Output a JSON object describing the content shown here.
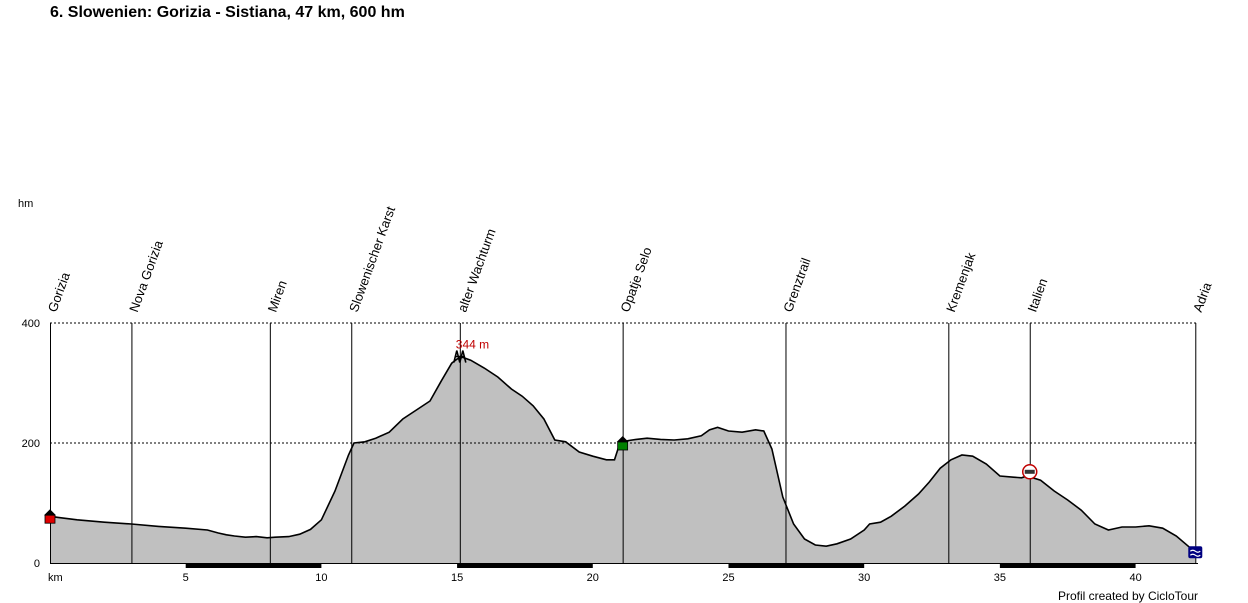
{
  "chart_data": {
    "type": "area",
    "title": "6. Slowenien: Gorizia - Sistiana, 47 km, 600 hm",
    "xlabel": "km",
    "ylabel": "hm",
    "xlim": [
      0,
      42.3
    ],
    "ylim": [
      0,
      400
    ],
    "x_ticks": [
      5,
      10,
      15,
      20,
      25,
      30,
      35,
      40
    ],
    "y_ticks": [
      0,
      200,
      400
    ],
    "grid": "dashed horizontal at 200 and 400",
    "fill_color": "#c0c0c0",
    "line_color": "#000000",
    "profile": {
      "x": [
        0,
        0.3,
        1,
        2,
        3,
        4,
        5,
        5.8,
        6.2,
        6.5,
        6.8,
        7.2,
        7.6,
        8,
        8.3,
        8.8,
        9.2,
        9.6,
        10,
        10.5,
        11,
        11.2,
        11.6,
        12,
        12.5,
        13,
        13.5,
        14,
        14.4,
        14.8,
        15,
        15.2,
        15.5,
        16,
        16.5,
        17,
        17.4,
        17.8,
        18.2,
        18.6,
        19,
        19.5,
        20,
        20.5,
        20.8,
        21,
        21.3,
        21.6,
        22,
        22.5,
        23,
        23.5,
        24,
        24.3,
        24.6,
        25,
        25.5,
        26,
        26.3,
        26.6,
        27,
        27.4,
        27.8,
        28.2,
        28.6,
        29,
        29.5,
        30,
        30.2,
        30.6,
        31,
        31.5,
        32,
        32.4,
        32.8,
        33.2,
        33.6,
        34,
        34.5,
        35,
        35.5,
        35.8,
        36,
        36.5,
        37,
        37.5,
        38,
        38.5,
        39,
        39.5,
        40,
        40.5,
        41,
        41.5,
        42.2
      ],
      "y": [
        78,
        76,
        72,
        68,
        65,
        61,
        58,
        55,
        50,
        47,
        45,
        43,
        44,
        42,
        43,
        44,
        48,
        56,
        72,
        120,
        180,
        200,
        202,
        208,
        218,
        240,
        255,
        270,
        302,
        333,
        340,
        343,
        338,
        325,
        310,
        290,
        278,
        262,
        240,
        205,
        202,
        185,
        178,
        172,
        172,
        200,
        204,
        206,
        208,
        206,
        205,
        207,
        212,
        222,
        226,
        220,
        218,
        222,
        220,
        190,
        110,
        65,
        40,
        30,
        28,
        32,
        40,
        55,
        65,
        68,
        78,
        95,
        115,
        135,
        158,
        172,
        180,
        178,
        165,
        145,
        143,
        142,
        145,
        138,
        120,
        105,
        88,
        65,
        55,
        60,
        60,
        62,
        58,
        45,
        18
      ]
    },
    "waypoints": [
      {
        "name": "Gorizia",
        "km": 0
      },
      {
        "name": "Nova Gorizia",
        "km": 3
      },
      {
        "name": "Miren",
        "km": 8.1
      },
      {
        "name": "Slowenischer Karst",
        "km": 11.1
      },
      {
        "name": "alter Wachturm",
        "km": 15.1
      },
      {
        "name": "Opatje Selo",
        "km": 21.1
      },
      {
        "name": "Grenztrail",
        "km": 27.1
      },
      {
        "name": "Kremenjak",
        "km": 33.1
      },
      {
        "name": "Italien",
        "km": 36.1
      },
      {
        "name": "Adria",
        "km": 42.2
      }
    ],
    "peak": {
      "km": 15.1,
      "elevation": 344,
      "label": "344 m"
    },
    "markers": [
      {
        "km": 0,
        "elevation": 78,
        "icon": "start-house-icon",
        "color": "#e00000"
      },
      {
        "km": 15.1,
        "elevation": 344,
        "icon": "tower-icon",
        "color": "#000000"
      },
      {
        "km": 21.1,
        "elevation": 200,
        "icon": "village-house-icon",
        "color": "#008000"
      },
      {
        "km": 36.1,
        "elevation": 152,
        "icon": "border-sign-icon",
        "color": "#c00000"
      },
      {
        "km": 42.2,
        "elevation": 18,
        "icon": "sea-icon",
        "color": "#000080"
      }
    ]
  },
  "credit": "Profil created by CicloTour"
}
